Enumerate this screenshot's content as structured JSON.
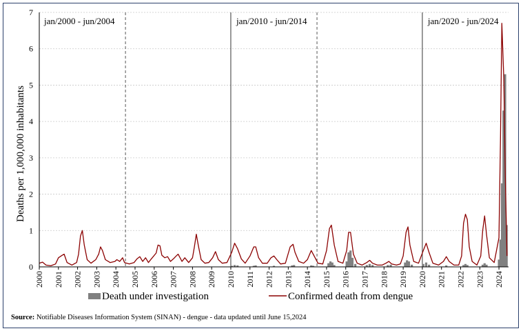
{
  "chart_data": {
    "type": "bar+line",
    "ylabel": "Deaths per 1,000,000 inhabitants",
    "ylim": [
      0,
      7
    ],
    "yticks": [
      "0",
      "1",
      "2",
      "3",
      "4",
      "5",
      "6",
      "7"
    ],
    "years": [
      "2000",
      "2001",
      "2002",
      "2003",
      "2004",
      "2005",
      "2006",
      "2007",
      "2008",
      "2009",
      "2010",
      "2011",
      "2012",
      "2013",
      "2014",
      "2015",
      "2016",
      "2017",
      "2018",
      "2019",
      "2020",
      "2021",
      "2022",
      "2023",
      "2024"
    ],
    "periods": [
      "jan/2000 - jun/2004",
      "jan/2010 - jun/2014",
      "jan/2020 - jun/2024"
    ],
    "period_divider_years": [
      2004.5,
      2010,
      2014.5,
      2020
    ],
    "series": [
      {
        "name": "Confirmed death from dengue",
        "type": "line",
        "color": "#8b0000",
        "points": [
          [
            2000.0,
            0.1
          ],
          [
            2000.17,
            0.13
          ],
          [
            2000.35,
            0.05
          ],
          [
            2000.6,
            0.03
          ],
          [
            2000.85,
            0.08
          ],
          [
            2001.0,
            0.25
          ],
          [
            2001.2,
            0.32
          ],
          [
            2001.3,
            0.35
          ],
          [
            2001.45,
            0.12
          ],
          [
            2001.7,
            0.05
          ],
          [
            2001.95,
            0.12
          ],
          [
            2002.05,
            0.35
          ],
          [
            2002.15,
            0.85
          ],
          [
            2002.25,
            1.0
          ],
          [
            2002.35,
            0.6
          ],
          [
            2002.5,
            0.2
          ],
          [
            2002.7,
            0.1
          ],
          [
            2002.95,
            0.2
          ],
          [
            2003.1,
            0.35
          ],
          [
            2003.2,
            0.55
          ],
          [
            2003.3,
            0.45
          ],
          [
            2003.45,
            0.2
          ],
          [
            2003.7,
            0.12
          ],
          [
            2003.95,
            0.15
          ],
          [
            2004.05,
            0.2
          ],
          [
            2004.2,
            0.15
          ],
          [
            2004.35,
            0.25
          ],
          [
            2004.45,
            0.12
          ],
          [
            2004.7,
            0.08
          ],
          [
            2004.95,
            0.12
          ],
          [
            2005.1,
            0.22
          ],
          [
            2005.25,
            0.28
          ],
          [
            2005.4,
            0.15
          ],
          [
            2005.55,
            0.25
          ],
          [
            2005.7,
            0.12
          ],
          [
            2005.85,
            0.22
          ],
          [
            2006.1,
            0.38
          ],
          [
            2006.2,
            0.6
          ],
          [
            2006.3,
            0.58
          ],
          [
            2006.4,
            0.32
          ],
          [
            2006.55,
            0.25
          ],
          [
            2006.7,
            0.28
          ],
          [
            2006.85,
            0.15
          ],
          [
            2007.0,
            0.22
          ],
          [
            2007.15,
            0.3
          ],
          [
            2007.25,
            0.35
          ],
          [
            2007.45,
            0.15
          ],
          [
            2007.6,
            0.25
          ],
          [
            2007.8,
            0.12
          ],
          [
            2008.0,
            0.25
          ],
          [
            2008.1,
            0.55
          ],
          [
            2008.2,
            0.9
          ],
          [
            2008.3,
            0.6
          ],
          [
            2008.45,
            0.2
          ],
          [
            2008.65,
            0.1
          ],
          [
            2008.85,
            0.12
          ],
          [
            2009.05,
            0.25
          ],
          [
            2009.2,
            0.42
          ],
          [
            2009.35,
            0.2
          ],
          [
            2009.55,
            0.1
          ],
          [
            2009.8,
            0.12
          ],
          [
            2010.05,
            0.4
          ],
          [
            2010.2,
            0.65
          ],
          [
            2010.35,
            0.5
          ],
          [
            2010.55,
            0.22
          ],
          [
            2010.75,
            0.1
          ],
          [
            2011.0,
            0.3
          ],
          [
            2011.2,
            0.55
          ],
          [
            2011.3,
            0.55
          ],
          [
            2011.45,
            0.25
          ],
          [
            2011.65,
            0.1
          ],
          [
            2011.9,
            0.1
          ],
          [
            2012.1,
            0.25
          ],
          [
            2012.25,
            0.3
          ],
          [
            2012.4,
            0.2
          ],
          [
            2012.6,
            0.08
          ],
          [
            2012.85,
            0.1
          ],
          [
            2013.1,
            0.55
          ],
          [
            2013.25,
            0.62
          ],
          [
            2013.35,
            0.4
          ],
          [
            2013.55,
            0.15
          ],
          [
            2013.8,
            0.1
          ],
          [
            2014.0,
            0.2
          ],
          [
            2014.2,
            0.45
          ],
          [
            2014.35,
            0.3
          ],
          [
            2014.55,
            0.1
          ],
          [
            2014.8,
            0.08
          ],
          [
            2015.0,
            0.45
          ],
          [
            2015.15,
            1.05
          ],
          [
            2015.25,
            1.15
          ],
          [
            2015.4,
            0.6
          ],
          [
            2015.6,
            0.15
          ],
          [
            2015.85,
            0.1
          ],
          [
            2016.05,
            0.45
          ],
          [
            2016.15,
            0.95
          ],
          [
            2016.25,
            0.95
          ],
          [
            2016.4,
            0.35
          ],
          [
            2016.6,
            0.1
          ],
          [
            2016.85,
            0.05
          ],
          [
            2017.1,
            0.12
          ],
          [
            2017.25,
            0.18
          ],
          [
            2017.4,
            0.1
          ],
          [
            2017.65,
            0.05
          ],
          [
            2017.9,
            0.05
          ],
          [
            2018.1,
            0.1
          ],
          [
            2018.25,
            0.15
          ],
          [
            2018.4,
            0.08
          ],
          [
            2018.65,
            0.05
          ],
          [
            2018.85,
            0.08
          ],
          [
            2019.0,
            0.3
          ],
          [
            2019.15,
            0.95
          ],
          [
            2019.25,
            1.1
          ],
          [
            2019.35,
            0.6
          ],
          [
            2019.55,
            0.15
          ],
          [
            2019.8,
            0.1
          ],
          [
            2020.05,
            0.45
          ],
          [
            2020.2,
            0.65
          ],
          [
            2020.35,
            0.4
          ],
          [
            2020.55,
            0.1
          ],
          [
            2020.85,
            0.05
          ],
          [
            2021.1,
            0.15
          ],
          [
            2021.25,
            0.28
          ],
          [
            2021.4,
            0.15
          ],
          [
            2021.65,
            0.05
          ],
          [
            2021.9,
            0.05
          ],
          [
            2022.05,
            0.3
          ],
          [
            2022.15,
            1.2
          ],
          [
            2022.25,
            1.45
          ],
          [
            2022.35,
            1.3
          ],
          [
            2022.45,
            0.55
          ],
          [
            2022.6,
            0.15
          ],
          [
            2022.85,
            0.05
          ],
          [
            2023.05,
            0.3
          ],
          [
            2023.15,
            1.0
          ],
          [
            2023.25,
            1.4
          ],
          [
            2023.35,
            0.9
          ],
          [
            2023.5,
            0.25
          ],
          [
            2023.75,
            0.12
          ],
          [
            2024.0,
            0.8
          ],
          [
            2024.08,
            3.5
          ],
          [
            2024.15,
            6.7
          ],
          [
            2024.25,
            5.2
          ],
          [
            2024.33,
            2.5
          ],
          [
            2024.42,
            0.3
          ]
        ]
      },
      {
        "name": "Death under investigation",
        "type": "bar",
        "color": "#808080",
        "points": [
          [
            2010.05,
            0.03
          ],
          [
            2010.2,
            0.05
          ],
          [
            2010.35,
            0.04
          ],
          [
            2011.2,
            0.03
          ],
          [
            2011.3,
            0.04
          ],
          [
            2012.25,
            0.03
          ],
          [
            2013.2,
            0.04
          ],
          [
            2013.3,
            0.05
          ],
          [
            2014.2,
            0.04
          ],
          [
            2014.3,
            0.03
          ],
          [
            2015.1,
            0.1
          ],
          [
            2015.2,
            0.15
          ],
          [
            2015.3,
            0.12
          ],
          [
            2015.4,
            0.05
          ],
          [
            2016.05,
            0.15
          ],
          [
            2016.15,
            0.4
          ],
          [
            2016.25,
            0.45
          ],
          [
            2016.35,
            0.25
          ],
          [
            2016.5,
            0.08
          ],
          [
            2017.1,
            0.05
          ],
          [
            2017.25,
            0.08
          ],
          [
            2017.4,
            0.05
          ],
          [
            2018.2,
            0.05
          ],
          [
            2018.35,
            0.06
          ],
          [
            2019.1,
            0.12
          ],
          [
            2019.2,
            0.18
          ],
          [
            2019.3,
            0.15
          ],
          [
            2019.45,
            0.06
          ],
          [
            2020.05,
            0.08
          ],
          [
            2020.2,
            0.12
          ],
          [
            2020.35,
            0.06
          ],
          [
            2021.25,
            0.04
          ],
          [
            2022.15,
            0.05
          ],
          [
            2022.25,
            0.08
          ],
          [
            2022.35,
            0.05
          ],
          [
            2023.15,
            0.06
          ],
          [
            2023.25,
            0.1
          ],
          [
            2023.35,
            0.06
          ],
          [
            2024.0,
            0.2
          ],
          [
            2024.08,
            0.75
          ],
          [
            2024.16,
            2.3
          ],
          [
            2024.24,
            4.3
          ],
          [
            2024.32,
            5.3
          ],
          [
            2024.4,
            1.15
          ]
        ]
      }
    ],
    "legend": [
      "Death under investigation",
      "Confirmed death from dengue"
    ]
  },
  "source": {
    "label": "Source:",
    "text": "Notifiable Diseases Information System (SINAN) - dengue - data updated until June 15,2024"
  }
}
